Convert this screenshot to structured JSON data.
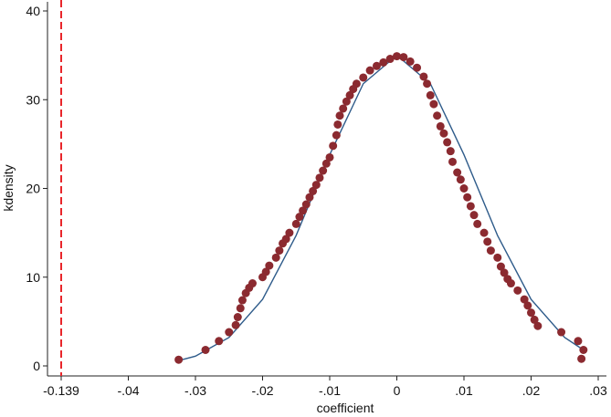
{
  "chart_data": {
    "type": "scatter",
    "xlabel": "coefficient",
    "ylabel": "kdensity",
    "xscale": "tick-spaced",
    "xlim": [
      -0.139,
      0.03
    ],
    "xticks": [
      {
        "value": -0.139,
        "label": "-0.139"
      },
      {
        "value": -0.04,
        "label": "-.04"
      },
      {
        "value": -0.03,
        "label": "-.03"
      },
      {
        "value": -0.02,
        "label": "-.02"
      },
      {
        "value": -0.01,
        "label": "-.01"
      },
      0,
      {
        "value": 0.01,
        "label": ".01"
      },
      {
        "value": 0.02,
        "label": ".02"
      },
      {
        "value": 0.03,
        "label": ".03"
      }
    ],
    "ylim": [
      0,
      40
    ],
    "yticks": [
      0,
      10,
      20,
      30,
      40
    ],
    "xline": {
      "value": -0.139,
      "color": "#e8262b"
    },
    "points": {
      "color": "#8b2a30",
      "x": [
        -0.0325,
        -0.0285,
        -0.0265,
        -0.025,
        -0.024,
        -0.0237,
        -0.0233,
        -0.023,
        -0.0225,
        -0.022,
        -0.0215,
        -0.02,
        -0.0195,
        -0.019,
        -0.018,
        -0.0175,
        -0.017,
        -0.0165,
        -0.016,
        -0.015,
        -0.0145,
        -0.014,
        -0.0135,
        -0.013,
        -0.0125,
        -0.012,
        -0.0115,
        -0.011,
        -0.0105,
        -0.01,
        -0.0095,
        -0.009,
        -0.0088,
        -0.0085,
        -0.008,
        -0.0075,
        -0.007,
        -0.0065,
        -0.006,
        -0.005,
        -0.004,
        -0.003,
        -0.002,
        -0.001,
        0,
        0.001,
        0.002,
        0.003,
        0.004,
        0.0045,
        0.005,
        0.0055,
        0.006,
        0.0065,
        0.007,
        0.0075,
        0.008,
        0.0083,
        0.009,
        0.0095,
        0.01,
        0.0105,
        0.011,
        0.0115,
        0.012,
        0.013,
        0.0135,
        0.014,
        0.015,
        0.0155,
        0.016,
        0.0165,
        0.017,
        0.018,
        0.019,
        0.0195,
        0.02,
        0.0205,
        0.021,
        0.0245,
        0.027,
        0.0278,
        0.0275
      ],
      "y": [
        0.7,
        1.8,
        2.8,
        3.8,
        4.6,
        5.5,
        6.5,
        7.4,
        8.2,
        8.8,
        9.3,
        10,
        10.6,
        11.3,
        12.2,
        13,
        13.8,
        14.3,
        15,
        16,
        16.8,
        17.5,
        18.2,
        19,
        19.7,
        20.4,
        21.2,
        22,
        22.8,
        23.5,
        24.8,
        26,
        27.2,
        28.2,
        29,
        29.8,
        30.5,
        31.2,
        31.8,
        32.5,
        33.3,
        33.8,
        34.2,
        34.6,
        34.9,
        34.8,
        34.3,
        33.6,
        32.6,
        31.8,
        30.5,
        29.5,
        28.2,
        27,
        26.2,
        25.2,
        24.2,
        23,
        21.8,
        21,
        20,
        19,
        18,
        17,
        16,
        15,
        14,
        13,
        12.2,
        11.2,
        10.5,
        9.8,
        9.3,
        8.5,
        7.5,
        6.8,
        6,
        5.2,
        4.5,
        3.8,
        2.8,
        1.8,
        0.8
      ]
    },
    "line": {
      "color": "#2e5b8a",
      "x": [
        -0.0325,
        -0.03,
        -0.025,
        -0.02,
        -0.015,
        -0.01,
        -0.005,
        0,
        0.005,
        0.01,
        0.015,
        0.02,
        0.025,
        0.0278
      ],
      "y": [
        0.6,
        1.1,
        3.2,
        7.5,
        14.7,
        23.8,
        31.8,
        35,
        31.8,
        23.8,
        14.7,
        7.5,
        3.2,
        1.8
      ]
    }
  }
}
